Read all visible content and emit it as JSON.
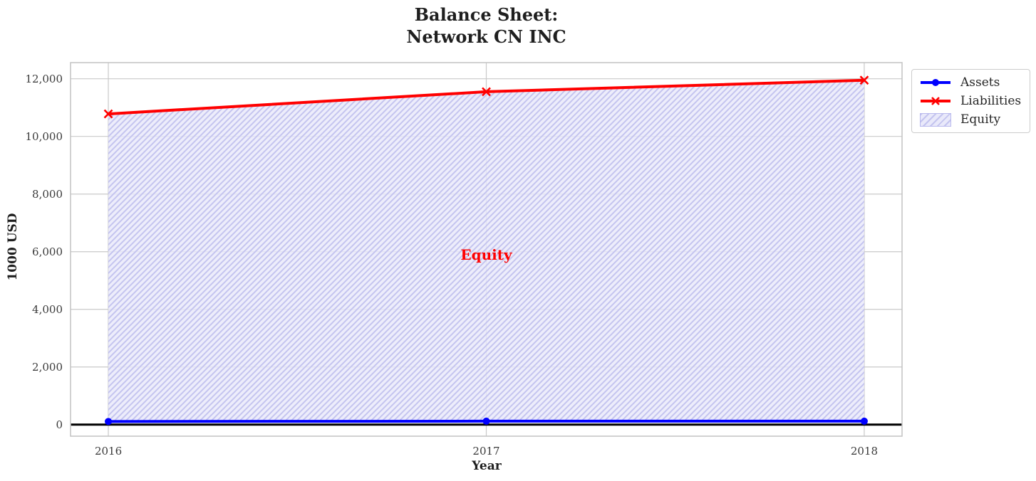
{
  "title": {
    "line1": "Balance Sheet:",
    "line2": "Network CN INC"
  },
  "axes": {
    "x_label": "Year",
    "y_label": "1000 USD",
    "x_ticks": [
      "2016",
      "2017",
      "2018"
    ],
    "y_ticks": [
      "0",
      "2,000",
      "4,000",
      "6,000",
      "8,000",
      "10,000",
      "12,000"
    ]
  },
  "annotation": {
    "text": "Equity",
    "color": "#ff0000"
  },
  "legend": {
    "items": [
      {
        "label": "Assets",
        "swatch": "line-circle",
        "color": "#0000ff"
      },
      {
        "label": "Liabilities",
        "swatch": "line-x",
        "color": "#ff0000"
      },
      {
        "label": "Equity",
        "swatch": "hatch",
        "fill": "#e9e9fa",
        "stripe": "#c4c4ef",
        "border": "#b9b9ee"
      }
    ]
  },
  "chart_data": {
    "type": "line",
    "title": "Balance Sheet:\nNetwork CN INC",
    "xlabel": "Year",
    "ylabel": "1000 USD",
    "x": [
      2016,
      2017,
      2018
    ],
    "series": [
      {
        "name": "Assets",
        "values": [
          110,
          120,
          120
        ],
        "color": "#0000ff",
        "marker": "circle",
        "linewidth": 4
      },
      {
        "name": "Liabilities",
        "values": [
          10780,
          11550,
          11950
        ],
        "color": "#ff0000",
        "marker": "x",
        "linewidth": 4
      }
    ],
    "fill_between": {
      "label": "Equity",
      "lower": "Assets",
      "upper": "Liabilities",
      "fill": "#e9e9fa",
      "hatch": "/",
      "hatch_color": "#c4c4ef"
    },
    "xlim": [
      2015.9,
      2018.1
    ],
    "ylim": [
      -400,
      12560
    ],
    "y_tick_values": [
      0,
      2000,
      4000,
      6000,
      8000,
      10000,
      12000
    ],
    "grid": true,
    "grid_color": "#c9c9c9",
    "spine_color": "#c2c2c2",
    "zero_line": {
      "y": 0,
      "color": "#000000",
      "width": 3
    },
    "legend_position": "outside upper right",
    "annotation": {
      "text": "Equity",
      "x": 2017,
      "y": 5900
    }
  }
}
